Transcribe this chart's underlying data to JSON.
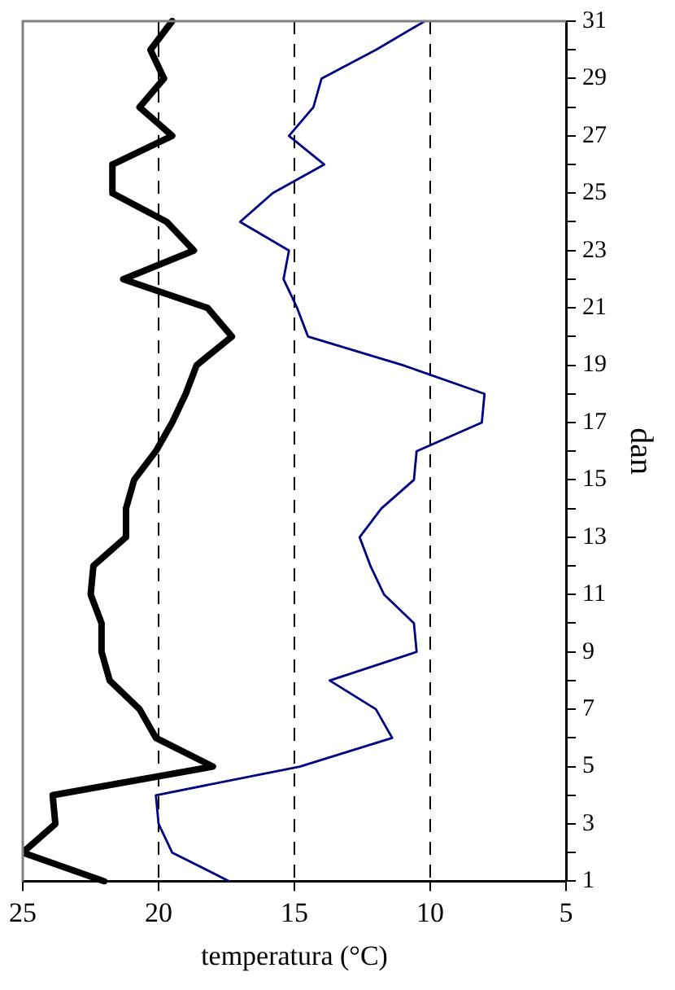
{
  "chart_data": {
    "type": "line",
    "orientation": "horizontal",
    "xlabel": "temperatura (°C)",
    "ylabel": "dan",
    "categories": [
      "31",
      null,
      "29",
      null,
      "27",
      null,
      "25",
      null,
      "23",
      null,
      "21",
      null,
      "19",
      null,
      "17",
      null,
      "15",
      null,
      "13",
      null,
      "11",
      null,
      "9",
      null,
      "7",
      null,
      "5",
      null,
      "3",
      null,
      "1"
    ],
    "series": [
      {
        "color": "#000000",
        "values": [
          19.5,
          20.3,
          19.8,
          20.7,
          19.5,
          21.7,
          21.7,
          19.7,
          18.7,
          21.3,
          18.2,
          17.3,
          18.6,
          19.0,
          19.5,
          20.1,
          20.9,
          21.2,
          21.2,
          22.4,
          22.5,
          22.1,
          22.1,
          21.8,
          20.7,
          20.1,
          18.0,
          23.9,
          23.8,
          25.0,
          22.0
        ]
      },
      {
        "color": "#000080",
        "values": [
          10.2,
          12.0,
          14.0,
          14.3,
          15.2,
          13.9,
          15.8,
          17.0,
          15.2,
          15.4,
          14.9,
          14.5,
          11.0,
          8.0,
          8.1,
          10.5,
          10.6,
          11.8,
          12.6,
          12.2,
          11.7,
          10.6,
          10.5,
          13.7,
          12.0,
          11.4,
          14.8,
          20.1,
          20.0,
          19.5,
          17.4
        ]
      }
    ],
    "xlim": [
      25,
      5
    ],
    "xticks": [
      25,
      20,
      15,
      10,
      5
    ],
    "grid": "x",
    "legend": false,
    "marker": "none",
    "line_style": "solid"
  }
}
